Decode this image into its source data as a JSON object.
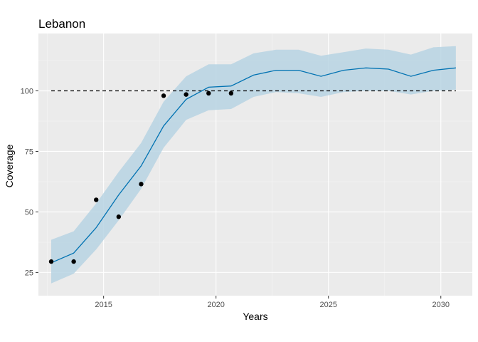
{
  "chart_data": {
    "type": "line",
    "title": "Lebanon",
    "xlabel": "Years",
    "ylabel": "Coverage",
    "xlim": [
      2012.1,
      2031.4
    ],
    "ylim": [
      15.4,
      123.7
    ],
    "x_ticks": [
      2015,
      2020,
      2025,
      2030
    ],
    "y_ticks": [
      25,
      50,
      75,
      100
    ],
    "grid": true,
    "reference_line": {
      "y": 100,
      "style": "dashed"
    },
    "series": [
      {
        "type": "ribbon",
        "x": [
          2012.67,
          2013.67,
          2014.67,
          2015.67,
          2016.67,
          2017.67,
          2018.67,
          2019.67,
          2020.67,
          2021.67,
          2022.67,
          2023.67,
          2024.67,
          2025.67,
          2026.67,
          2027.67,
          2028.67,
          2029.67,
          2030.67
        ],
        "lower": [
          20.5,
          24.5,
          34.5,
          46.5,
          59.5,
          76.5,
          88.0,
          92.0,
          92.5,
          97.5,
          99.5,
          99.0,
          97.5,
          99.5,
          100.0,
          100.0,
          98.5,
          100.0,
          100.5
        ],
        "upper": [
          38.5,
          42.0,
          53.5,
          66.5,
          78.5,
          95.5,
          106.0,
          111.0,
          111.0,
          115.5,
          117.0,
          117.0,
          114.5,
          116.0,
          117.5,
          117.0,
          115.0,
          118.0,
          118.5
        ]
      },
      {
        "type": "line",
        "x": [
          2012.67,
          2013.67,
          2014.67,
          2015.67,
          2016.67,
          2017.67,
          2018.67,
          2019.67,
          2020.67,
          2021.67,
          2022.67,
          2023.67,
          2024.67,
          2025.67,
          2026.67,
          2027.67,
          2028.67,
          2029.67,
          2030.67
        ],
        "y": [
          29.0,
          33.0,
          43.5,
          57.0,
          69.0,
          85.5,
          96.5,
          101.5,
          102.0,
          106.5,
          108.5,
          108.5,
          106.0,
          108.5,
          109.5,
          109.0,
          106.0,
          108.5,
          109.5
        ]
      },
      {
        "type": "scatter",
        "x": [
          2012.67,
          2013.67,
          2014.67,
          2015.67,
          2016.67,
          2017.67,
          2018.67,
          2019.67,
          2020.67
        ],
        "y": [
          29.5,
          29.5,
          55.0,
          48.0,
          61.5,
          98.0,
          98.5,
          99.0,
          99.0
        ]
      }
    ],
    "colors": {
      "panel": "#ebebeb",
      "grid_major": "#ffffff",
      "grid_minor": "#f5f5f5",
      "ribbon": "#b7d3e3",
      "line": "#0072b2",
      "points": "#000000",
      "reference": "#000000"
    }
  }
}
